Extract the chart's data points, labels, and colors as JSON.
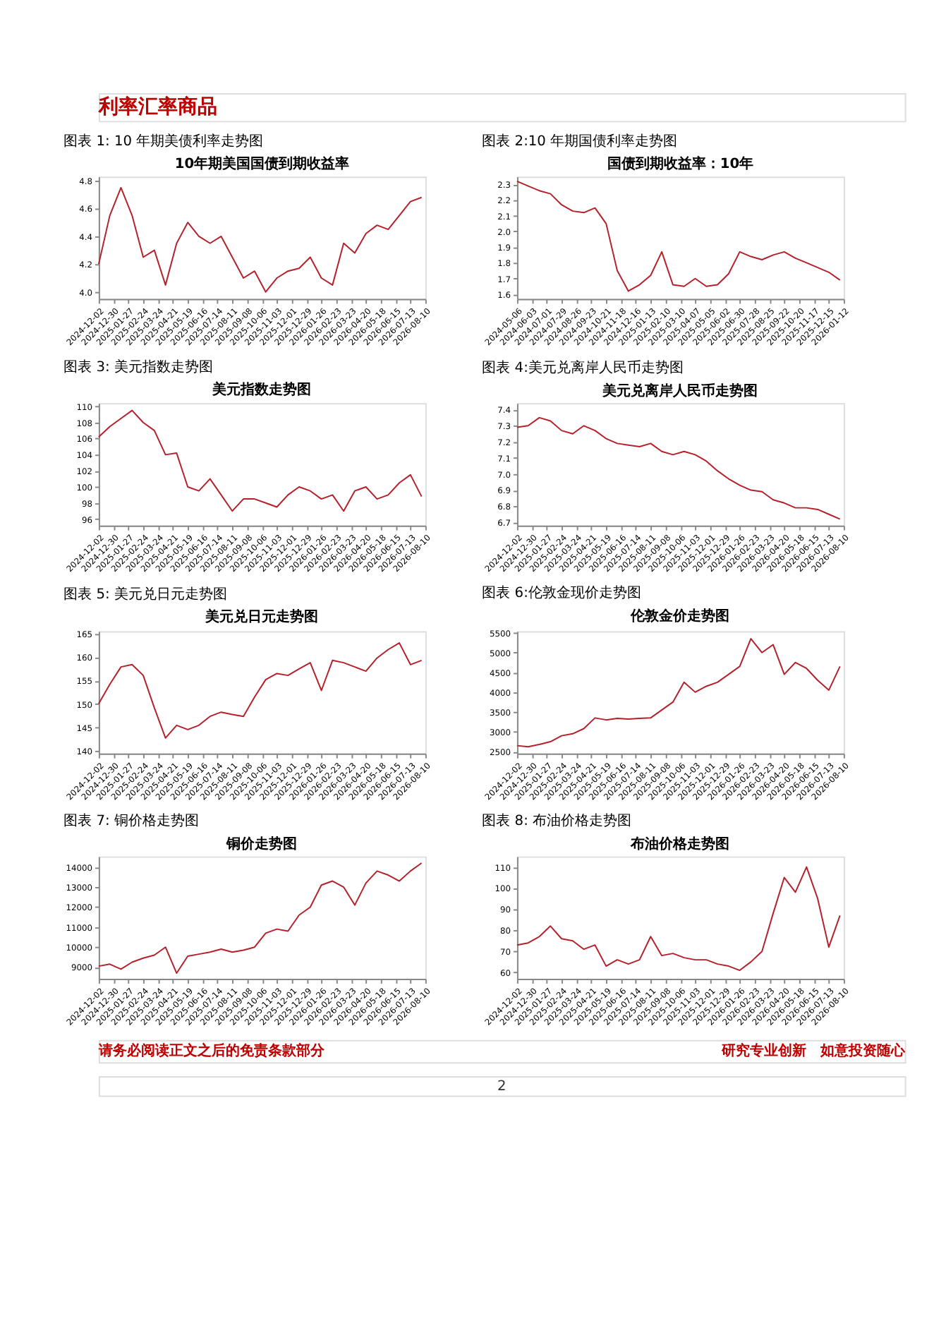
{
  "chart_data": [
    {
      "type": "line",
      "title": "图表 1: 10 年期美债利率走势图",
      "subtitle": "10年期美国国债到期收益率",
      "annotations": [
        "利率汇率商品"
      ],
      "x": [
        "2024-12-02",
        "2024-12-23",
        "2025-01-13",
        "2025-02-03",
        "2025-02-24",
        "2025-03-17",
        "2025-04-07",
        "2025-04-28",
        "2025-05-19",
        "2025-06-09",
        "2025-06-30",
        "2025-07-21",
        "2025-08-11",
        "2025-09-01",
        "2025-09-22",
        "2025-10-13",
        "2025-11-03",
        "2025-11-24",
        "2025-12-15",
        "2026-01-05",
        "2026-01-26",
        "2026-02-16",
        "2026-03-09",
        "2026-03-30",
        "2026-04-20",
        "2026-05-11",
        "2026-06-01",
        "2026-06-22",
        "2026-07-13",
        "2026-08-03"
      ],
      "xlim": [
        "2024-12-02",
        "2026-08-10"
      ],
      "xticks": [
        "2024-12-02",
        "2024-12-30",
        "2025-01-27",
        "2025-02-24",
        "2025-03-24",
        "2025-04-21",
        "2025-05-19",
        "2025-06-16",
        "2025-07-14",
        "2025-08-11",
        "2025-09-08",
        "2025-10-06",
        "2025-11-03",
        "2025-12-01",
        "2025-12-29",
        "2026-01-26",
        "2026-02-23",
        "2026-03-23",
        "2026-04-20",
        "2026-05-18",
        "2026-06-15",
        "2026-07-13",
        "2026-08-10"
      ],
      "ylim": [
        3.95,
        4.83
      ],
      "yticks": [
        {
          "value": 4,
          "label": "4.0"
        },
        4.2,
        4.4,
        4.6,
        4.8
      ],
      "series": [
        {
          "color": "#b5202a",
          "values": [
            4.2,
            4.55,
            4.75,
            4.55,
            4.25,
            4.3,
            4.05,
            4.35,
            4.5,
            4.4,
            4.35,
            4.4,
            4.25,
            4.1,
            4.15,
            4.0,
            4.1,
            4.15,
            4.17,
            4.25,
            4.1,
            4.05,
            4.35,
            4.28,
            4.42,
            4.48,
            4.45,
            4.55,
            4.65,
            4.68
          ]
        }
      ]
    },
    {
      "type": "line",
      "title": "图表 2:10 年期国债利率走势图",
      "subtitle": "国债到期收益率：10年",
      "x": [
        "2024-05-06",
        "2024-05-27",
        "2024-06-17",
        "2024-07-08",
        "2024-07-29",
        "2024-08-19",
        "2024-09-09",
        "2024-09-30",
        "2024-10-21",
        "2024-11-11",
        "2024-12-02",
        "2024-12-23",
        "2025-01-13",
        "2025-02-03",
        "2025-02-24",
        "2025-03-17",
        "2025-04-07",
        "2025-04-28",
        "2025-05-19",
        "2025-06-09",
        "2025-06-30",
        "2025-07-21",
        "2025-08-11",
        "2025-09-01",
        "2025-09-22",
        "2025-10-13",
        "2025-11-03",
        "2025-11-24",
        "2025-12-15",
        "2026-01-05"
      ],
      "xlim": [
        "2024-05-06",
        "2026-01-12"
      ],
      "xticks": [
        "2024-05-06",
        "2024-06-03",
        "2024-07-01",
        "2024-07-29",
        "2024-08-26",
        "2024-09-23",
        "2024-10-21",
        "2024-11-18",
        "2024-12-16",
        "2025-01-13",
        "2025-02-10",
        "2025-03-10",
        "2025-04-07",
        "2025-05-05",
        "2025-06-02",
        "2025-06-30",
        "2025-07-28",
        "2025-08-25",
        "2025-09-22",
        "2025-10-20",
        "2025-11-17",
        "2025-12-15",
        "2026-01-12"
      ],
      "ylim": [
        1.57,
        2.35
      ],
      "yticks": [
        1.6,
        1.7,
        1.8,
        1.9,
        {
          "value": 2,
          "label": "2.0"
        },
        2.1,
        2.2,
        2.3
      ],
      "series": [
        {
          "color": "#b5202a",
          "values": [
            2.32,
            2.29,
            2.26,
            2.24,
            2.17,
            2.13,
            2.12,
            2.15,
            2.05,
            1.75,
            1.62,
            1.66,
            1.72,
            1.87,
            1.66,
            1.65,
            1.7,
            1.65,
            1.66,
            1.73,
            1.87,
            1.84,
            1.82,
            1.85,
            1.87,
            1.83,
            1.8,
            1.77,
            1.74,
            1.69
          ]
        }
      ]
    },
    {
      "type": "line",
      "title": "图表 3: 美元指数走势图",
      "subtitle": "美元指数走势图",
      "x": [
        "2024-12-02",
        "2024-12-23",
        "2025-01-13",
        "2025-02-03",
        "2025-02-24",
        "2025-03-17",
        "2025-04-07",
        "2025-04-28",
        "2025-05-19",
        "2025-06-09",
        "2025-06-30",
        "2025-07-21",
        "2025-08-11",
        "2025-09-01",
        "2025-09-22",
        "2025-10-13",
        "2025-11-03",
        "2025-11-24",
        "2025-12-15",
        "2026-01-05",
        "2026-01-26",
        "2026-02-16",
        "2026-03-09",
        "2026-03-30",
        "2026-04-20",
        "2026-05-11",
        "2026-06-01",
        "2026-06-22",
        "2026-07-13",
        "2026-08-03"
      ],
      "xlim": [
        "2024-12-02",
        "2026-08-10"
      ],
      "xticks": [
        "2024-12-02",
        "2024-12-30",
        "2025-01-27",
        "2025-02-24",
        "2025-03-24",
        "2025-04-21",
        "2025-05-19",
        "2025-06-16",
        "2025-07-14",
        "2025-08-11",
        "2025-09-08",
        "2025-10-06",
        "2025-11-03",
        "2025-12-01",
        "2025-12-29",
        "2026-01-26",
        "2026-02-23",
        "2026-03-23",
        "2026-04-20",
        "2026-05-18",
        "2026-06-15",
        "2026-07-13",
        "2026-08-10"
      ],
      "ylim": [
        95.2,
        110.4
      ],
      "yticks": [
        96,
        98,
        100,
        102,
        104,
        106,
        108,
        110
      ],
      "series": [
        {
          "color": "#b5202a",
          "values": [
            106.2,
            107.5,
            108.5,
            109.5,
            108,
            107,
            104,
            104.2,
            100,
            99.5,
            101,
            99,
            97,
            98.5,
            98.5,
            98,
            97.5,
            99,
            100,
            99.5,
            98.5,
            99,
            97,
            99.5,
            100,
            98.5,
            99,
            100.5,
            101.5,
            98.8
          ]
        }
      ]
    },
    {
      "type": "line",
      "title": "图表 4:美元兑离岸人民币走势图",
      "subtitle": "美元兑离岸人民币走势图",
      "x": [
        "2024-12-02",
        "2024-12-23",
        "2025-01-13",
        "2025-02-03",
        "2025-02-24",
        "2025-03-17",
        "2025-04-07",
        "2025-04-28",
        "2025-05-19",
        "2025-06-09",
        "2025-06-30",
        "2025-07-21",
        "2025-08-11",
        "2025-09-01",
        "2025-09-22",
        "2025-10-13",
        "2025-11-03",
        "2025-11-24",
        "2025-12-15",
        "2026-01-05",
        "2026-01-26",
        "2026-02-16",
        "2026-03-09",
        "2026-03-30",
        "2026-04-20",
        "2026-05-11",
        "2026-06-01",
        "2026-06-22",
        "2026-07-13",
        "2026-08-03"
      ],
      "xlim": [
        "2024-12-02",
        "2026-08-10"
      ],
      "xticks": [
        "2024-12-02",
        "2024-12-30",
        "2025-01-27",
        "2025-02-24",
        "2025-03-24",
        "2025-04-21",
        "2025-05-19",
        "2025-06-16",
        "2025-07-14",
        "2025-08-11",
        "2025-09-08",
        "2025-10-06",
        "2025-11-03",
        "2025-12-01",
        "2025-12-29",
        "2026-01-26",
        "2026-02-23",
        "2026-03-23",
        "2026-04-20",
        "2026-05-18",
        "2026-06-15",
        "2026-07-13",
        "2026-08-10"
      ],
      "ylim": [
        6.68,
        7.44
      ],
      "yticks": [
        6.7,
        6.8,
        6.9,
        {
          "value": 7,
          "label": "7.0"
        },
        7.1,
        7.2,
        7.3,
        7.4
      ],
      "series": [
        {
          "color": "#b5202a",
          "values": [
            7.29,
            7.3,
            7.35,
            7.33,
            7.27,
            7.25,
            7.3,
            7.27,
            7.22,
            7.19,
            7.18,
            7.17,
            7.19,
            7.14,
            7.12,
            7.14,
            7.12,
            7.08,
            7.02,
            6.97,
            6.93,
            6.9,
            6.89,
            6.84,
            6.82,
            6.79,
            6.79,
            6.78,
            6.75,
            6.72
          ]
        }
      ]
    },
    {
      "type": "line",
      "title": "图表 5: 美元兑日元走势图",
      "subtitle": "美元兑日元走势图",
      "x": [
        "2024-12-02",
        "2024-12-23",
        "2025-01-13",
        "2025-02-03",
        "2025-02-24",
        "2025-03-17",
        "2025-04-07",
        "2025-04-28",
        "2025-05-19",
        "2025-06-09",
        "2025-06-30",
        "2025-07-21",
        "2025-08-11",
        "2025-09-01",
        "2025-09-22",
        "2025-10-13",
        "2025-11-03",
        "2025-11-24",
        "2025-12-15",
        "2026-01-05",
        "2026-01-26",
        "2026-02-16",
        "2026-03-09",
        "2026-03-30",
        "2026-04-20",
        "2026-05-11",
        "2026-06-01",
        "2026-06-22",
        "2026-07-13",
        "2026-08-03"
      ],
      "xlim": [
        "2024-12-02",
        "2026-08-10"
      ],
      "xticks": [
        "2024-12-02",
        "2024-12-30",
        "2025-01-27",
        "2025-02-24",
        "2025-03-24",
        "2025-04-21",
        "2025-05-19",
        "2025-06-16",
        "2025-07-14",
        "2025-08-11",
        "2025-09-08",
        "2025-10-06",
        "2025-11-03",
        "2025-12-01",
        "2025-12-29",
        "2026-01-26",
        "2026-02-23",
        "2026-03-23",
        "2026-04-20",
        "2026-05-18",
        "2026-06-15",
        "2026-07-13",
        "2026-08-10"
      ],
      "ylim": [
        139.5,
        165.5
      ],
      "yticks": [
        140,
        145,
        150,
        155,
        160,
        165
      ],
      "series": [
        {
          "color": "#b5202a",
          "values": [
            150.1,
            154.2,
            157.9,
            158.4,
            156.1,
            149.2,
            142.8,
            145.5,
            144.6,
            145.5,
            147.4,
            148.3,
            147.8,
            147.4,
            151.5,
            155.2,
            156.5,
            156.1,
            157.5,
            158.8,
            152.9,
            159.3,
            158.8,
            157.9,
            157,
            159.8,
            161.6,
            163,
            158.4,
            159.3
          ]
        }
      ]
    },
    {
      "type": "line",
      "title": "图表 6:伦敦金现价走势图",
      "subtitle": "伦敦金价走势图",
      "x": [
        "2024-12-02",
        "2024-12-23",
        "2025-01-13",
        "2025-02-03",
        "2025-02-24",
        "2025-03-17",
        "2025-04-07",
        "2025-04-28",
        "2025-05-19",
        "2025-06-09",
        "2025-06-30",
        "2025-07-21",
        "2025-08-11",
        "2025-09-01",
        "2025-09-22",
        "2025-10-13",
        "2025-11-03",
        "2025-11-24",
        "2025-12-15",
        "2026-01-05",
        "2026-01-26",
        "2026-02-16",
        "2026-03-09",
        "2026-03-30",
        "2026-04-20",
        "2026-05-11",
        "2026-06-01",
        "2026-06-22",
        "2026-07-13",
        "2026-08-03"
      ],
      "xlim": [
        "2024-12-02",
        "2026-08-10"
      ],
      "xticks": [
        "2024-12-02",
        "2024-12-30",
        "2025-01-27",
        "2025-02-24",
        "2025-03-24",
        "2025-04-21",
        "2025-05-19",
        "2025-06-16",
        "2025-07-14",
        "2025-08-11",
        "2025-09-08",
        "2025-10-06",
        "2025-11-03",
        "2025-12-01",
        "2025-12-29",
        "2026-01-26",
        "2026-02-23",
        "2026-03-23",
        "2026-04-20",
        "2026-05-18",
        "2026-06-15",
        "2026-07-13",
        "2026-08-10"
      ],
      "ylim": [
        2450,
        5540
      ],
      "yticks": [
        2500,
        3000,
        3500,
        4000,
        4500,
        5000,
        5500
      ],
      "series": [
        {
          "color": "#b5202a",
          "values": [
            2650,
            2620,
            2680,
            2750,
            2900,
            2950,
            3080,
            3350,
            3300,
            3340,
            3320,
            3340,
            3350,
            3550,
            3750,
            4250,
            4000,
            4150,
            4250,
            4450,
            4650,
            5350,
            5000,
            5200,
            4450,
            4750,
            4600,
            4300,
            4050,
            4650
          ]
        }
      ]
    },
    {
      "type": "line",
      "title": "图表 7: 铜价格走势图",
      "subtitle": "铜价走势图",
      "x": [
        "2024-12-02",
        "2024-12-23",
        "2025-01-13",
        "2025-02-03",
        "2025-02-24",
        "2025-03-17",
        "2025-04-07",
        "2025-04-28",
        "2025-05-19",
        "2025-06-09",
        "2025-06-30",
        "2025-07-21",
        "2025-08-11",
        "2025-09-01",
        "2025-09-22",
        "2025-10-13",
        "2025-11-03",
        "2025-11-24",
        "2025-12-15",
        "2026-01-05",
        "2026-01-26",
        "2026-02-16",
        "2026-03-09",
        "2026-03-30",
        "2026-04-20",
        "2026-05-11",
        "2026-06-01",
        "2026-06-22",
        "2026-07-13",
        "2026-08-03"
      ],
      "xlim": [
        "2024-12-02",
        "2026-08-10"
      ],
      "xticks": [
        "2024-12-02",
        "2024-12-30",
        "2025-01-27",
        "2025-02-24",
        "2025-03-24",
        "2025-04-21",
        "2025-05-19",
        "2025-06-16",
        "2025-07-14",
        "2025-08-11",
        "2025-09-08",
        "2025-10-06",
        "2025-11-03",
        "2025-12-01",
        "2025-12-29",
        "2026-01-26",
        "2026-02-23",
        "2026-03-23",
        "2026-04-20",
        "2026-05-18",
        "2026-06-15",
        "2026-07-13",
        "2026-08-10"
      ],
      "ylim": [
        8420,
        14530
      ],
      "yticks": [
        9000,
        10000,
        11000,
        12000,
        13000,
        14000
      ],
      "series": [
        {
          "color": "#b5202a",
          "values": [
            9050,
            9150,
            8900,
            9250,
            9450,
            9600,
            10000,
            8700,
            9550,
            9650,
            9750,
            9900,
            9750,
            9850,
            10000,
            10700,
            10900,
            10800,
            11600,
            12000,
            13100,
            13300,
            13000,
            12100,
            13200,
            13800,
            13600,
            13300,
            13800,
            14200
          ]
        }
      ]
    },
    {
      "type": "line",
      "title": "图表 8: 布油价格走势图",
      "subtitle": "布油价格走势图",
      "annotations": [
        "请务必阅读正文之后的免责条款部分",
        "研究专业创新　如意投资随心",
        "2"
      ],
      "x": [
        "2024-12-02",
        "2024-12-23",
        "2025-01-13",
        "2025-02-03",
        "2025-02-24",
        "2025-03-17",
        "2025-04-07",
        "2025-04-28",
        "2025-05-19",
        "2025-06-09",
        "2025-06-30",
        "2025-07-21",
        "2025-08-11",
        "2025-09-01",
        "2025-09-22",
        "2025-10-13",
        "2025-11-03",
        "2025-11-24",
        "2025-12-15",
        "2026-01-05",
        "2026-01-26",
        "2026-02-16",
        "2026-03-09",
        "2026-03-30",
        "2026-04-20",
        "2026-05-11",
        "2026-06-01",
        "2026-06-22",
        "2026-07-13",
        "2026-08-03"
      ],
      "xlim": [
        "2024-12-02",
        "2026-08-10"
      ],
      "xticks": [
        "2024-12-02",
        "2024-12-30",
        "2025-01-27",
        "2025-02-24",
        "2025-03-24",
        "2025-04-21",
        "2025-05-19",
        "2025-06-16",
        "2025-07-14",
        "2025-08-11",
        "2025-09-08",
        "2025-10-06",
        "2025-11-03",
        "2025-12-01",
        "2025-12-29",
        "2026-01-26",
        "2026-02-23",
        "2026-03-23",
        "2026-04-20",
        "2026-05-18",
        "2026-06-15",
        "2026-07-13",
        "2026-08-10"
      ],
      "ylim": [
        57,
        115
      ],
      "yticks": [
        60,
        70,
        80,
        90,
        100,
        110
      ],
      "series": [
        {
          "color": "#b5202a",
          "values": [
            73,
            74,
            77,
            82,
            76,
            75,
            71,
            73,
            63,
            66,
            64,
            66,
            77,
            68,
            69,
            67,
            66,
            66,
            64,
            63,
            61,
            65,
            70,
            88,
            105,
            98,
            110,
            95,
            72,
            87
          ]
        }
      ]
    }
  ]
}
